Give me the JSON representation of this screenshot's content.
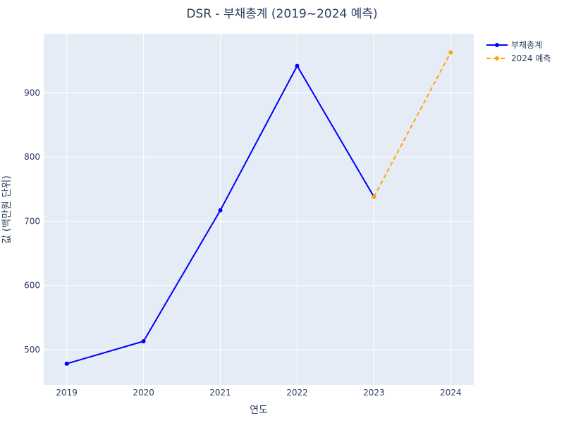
{
  "chart_data": {
    "type": "line",
    "title": "DSR - 부채총계 (2019~2024 예측)",
    "xlabel": "연도",
    "ylabel": "값 (백만원 단위)",
    "x": [
      2019,
      2020,
      2021,
      2022,
      2023,
      2024
    ],
    "xlim": [
      2018.7,
      2024.3
    ],
    "ylim": [
      445,
      992
    ],
    "yticks": [
      500,
      600,
      700,
      800,
      900
    ],
    "grid": true,
    "legend_position": "top-right",
    "plot_background": "#e5ecf6",
    "series": [
      {
        "name": "부채총계",
        "color": "#0000ff",
        "dash": "solid",
        "points": [
          [
            2019,
            478
          ],
          [
            2020,
            513
          ],
          [
            2021,
            717
          ],
          [
            2022,
            942
          ],
          [
            2023,
            738
          ]
        ]
      },
      {
        "name": "2024 예측",
        "color": "#ffa500",
        "dash": "dash",
        "points": [
          [
            2023,
            738
          ],
          [
            2024,
            963
          ]
        ]
      }
    ]
  }
}
